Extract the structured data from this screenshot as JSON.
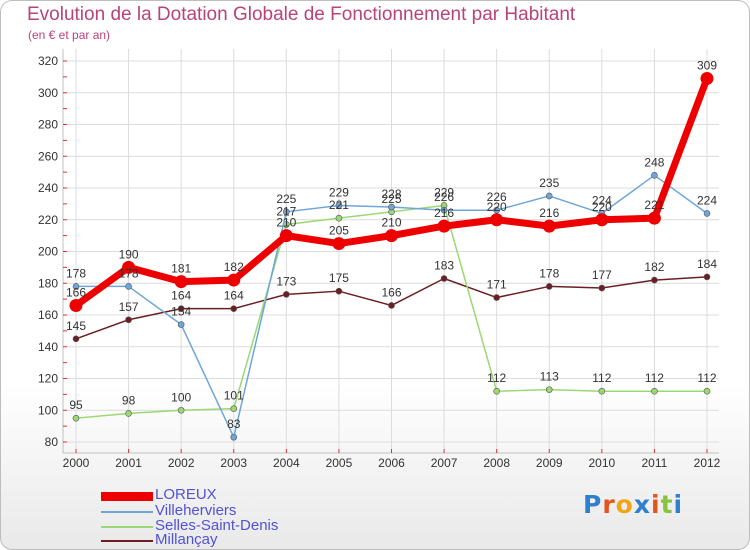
{
  "title": "Evolution de la Dotation Globale de Fonctionnement par Habitant",
  "subtitle": "(en € et par an)",
  "logo_text": "Proxiti",
  "chart_data": {
    "type": "line",
    "title": "Evolution de la Dotation Globale de Fonctionnement par Habitant",
    "subtitle": "(en € et par an)",
    "xlabel": "",
    "ylabel": "",
    "ylim": [
      80,
      320
    ],
    "y_ticks": [
      80,
      100,
      120,
      140,
      160,
      180,
      200,
      220,
      240,
      260,
      280,
      300,
      320
    ],
    "categories": [
      "2000",
      "2001",
      "2002",
      "2003",
      "2004",
      "2005",
      "2006",
      "2007",
      "2008",
      "2009",
      "2010",
      "2011",
      "2012"
    ],
    "legend_position": "bottom-left",
    "series": [
      {
        "name": "Millançay",
        "color": "#6b1f24",
        "values": [
          145,
          157,
          164,
          164,
          173,
          175,
          166,
          183,
          171,
          178,
          177,
          182,
          184
        ],
        "labels": [
          "145",
          "157",
          "164",
          "164",
          "173",
          "175",
          "166",
          "183",
          "171",
          "178",
          "177",
          "182",
          "184"
        ]
      },
      {
        "name": "Selles-Saint-Denis",
        "color": "#9ad873",
        "values": [
          95,
          98,
          100,
          101,
          217,
          221,
          225,
          229,
          112,
          113,
          112,
          112,
          112
        ],
        "labels": [
          "95",
          "98",
          "100",
          "101",
          "217",
          "221",
          "225",
          "229",
          "112",
          "113",
          "112",
          "112",
          "112"
        ]
      },
      {
        "name": "Villeherviers",
        "color": "#6ea6d8",
        "values": [
          178,
          178,
          154,
          83,
          225,
          229,
          228,
          226,
          226,
          235,
          224,
          248,
          224
        ],
        "labels": [
          "178",
          "178",
          "154",
          "83",
          "225",
          "229",
          "228",
          "226",
          "226",
          "235",
          "224",
          "248",
          "224"
        ]
      },
      {
        "name": "LOREUX",
        "color": "#ee0000",
        "values": [
          166,
          190,
          181,
          182,
          210,
          205,
          210,
          216,
          220,
          216,
          220,
          221,
          309
        ],
        "labels": [
          "166",
          "190",
          "181",
          "182",
          "210",
          "205",
          "210",
          "216",
          "220",
          "216",
          "220",
          "221",
          "309"
        ]
      }
    ],
    "legend": [
      "LOREUX",
      "Villeherviers",
      "Selles-Saint-Denis",
      "Millançay"
    ]
  }
}
